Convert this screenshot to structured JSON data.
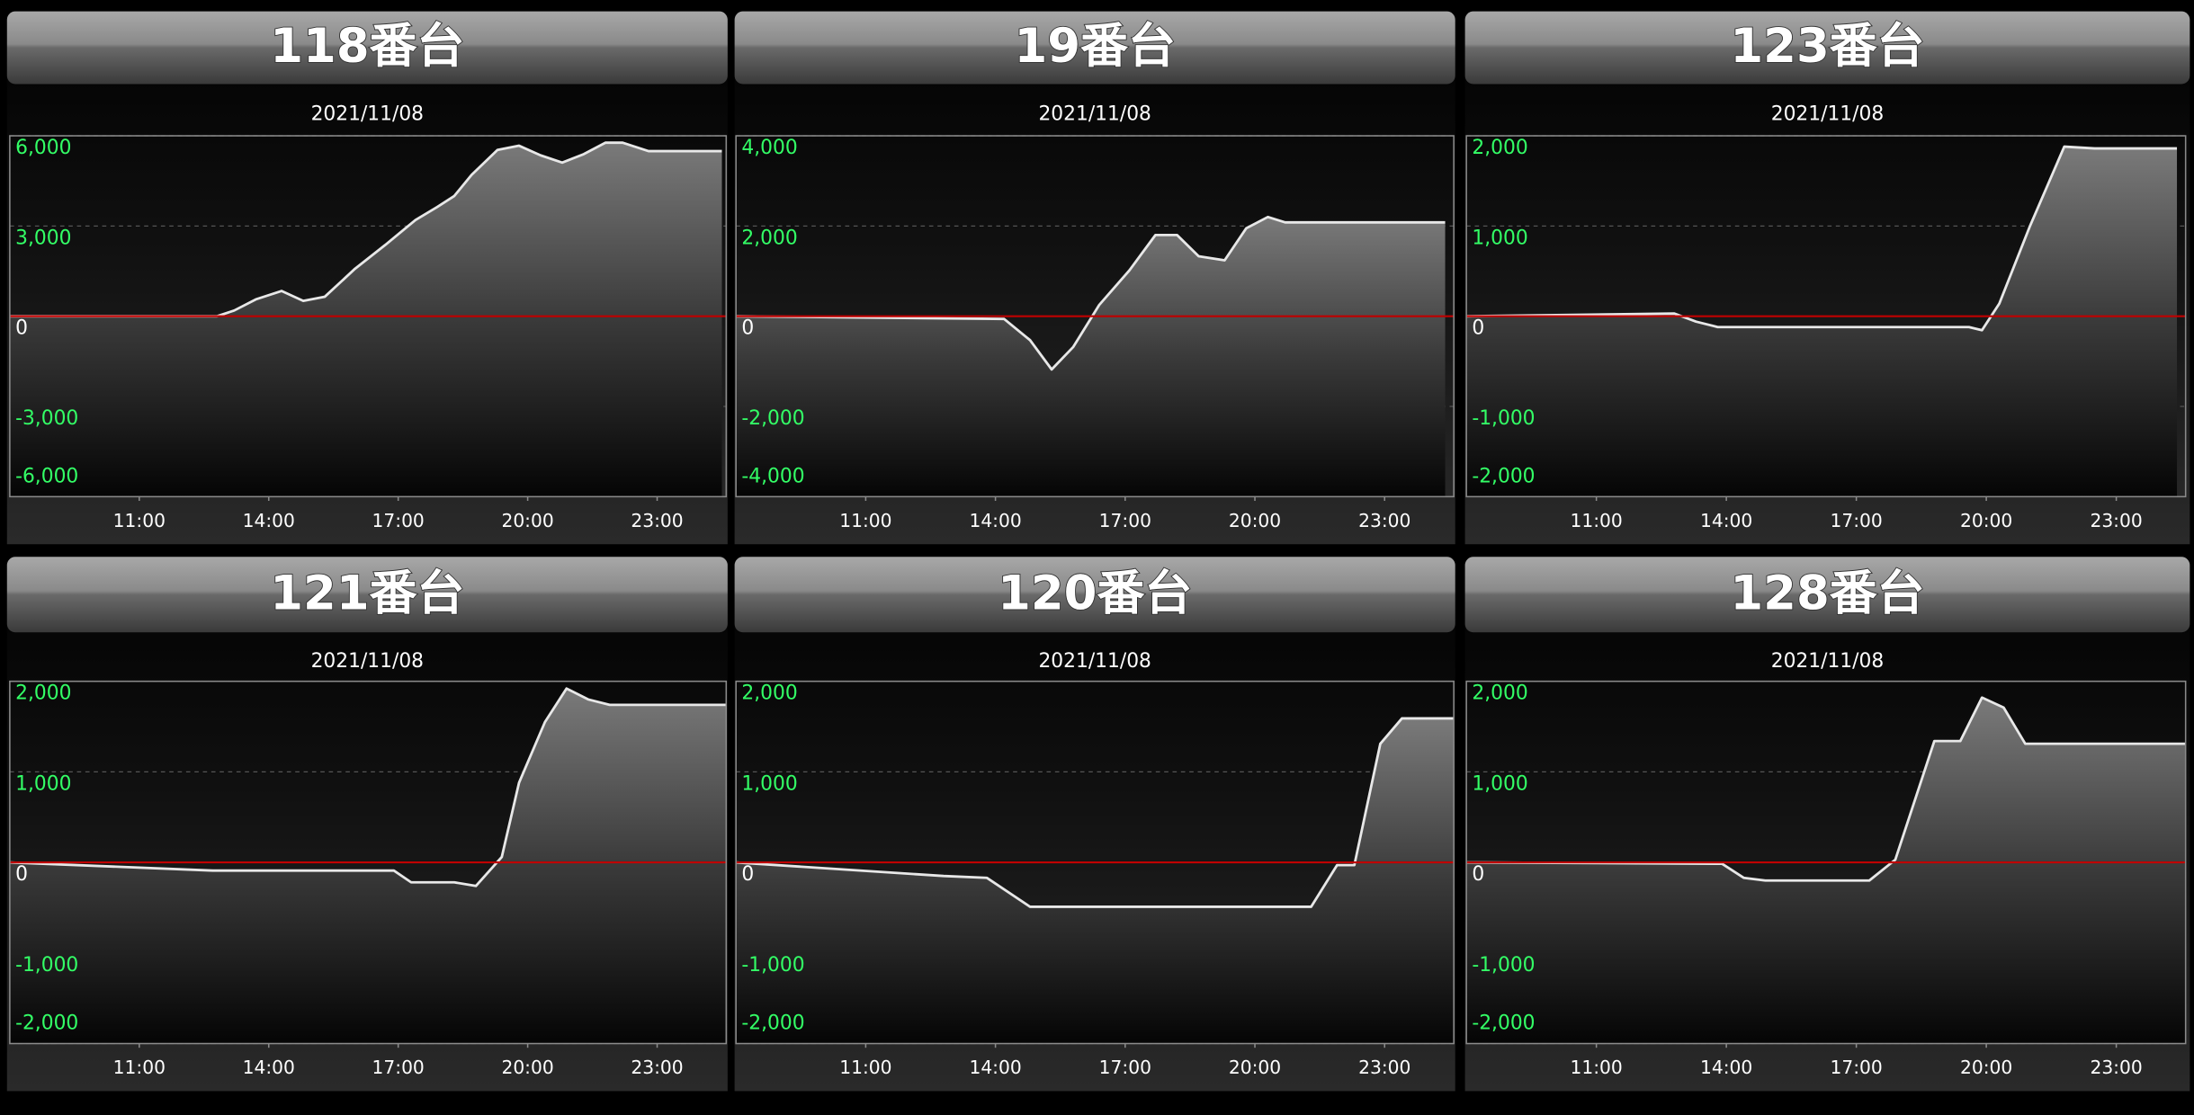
{
  "chart_data": [
    {
      "type": "line",
      "title": "118番台",
      "subtitle": "2021/11/08",
      "x": [
        8,
        12.8,
        13.2,
        13.7,
        14.3,
        14.8,
        15.3,
        16,
        16.7,
        17.4,
        17.9,
        18.3,
        18.7,
        19.3,
        19.8,
        20.3,
        20.8,
        21.3,
        21.8,
        22.2,
        22.8,
        24.5
      ],
      "series": [
        {
          "color": "#e8e8e8",
          "values": [
            0,
            0,
            190,
            560,
            840,
            510,
            650,
            1580,
            2370,
            3200,
            3630,
            4000,
            4700,
            5530,
            5670,
            5350,
            5110,
            5390,
            5770,
            5770,
            5490,
            5490
          ]
        }
      ],
      "xlim": [
        8,
        24.6
      ],
      "xticks": [
        {
          "value": 11,
          "label": "11:00"
        },
        {
          "value": 14,
          "label": "14:00"
        },
        {
          "value": 17,
          "label": "17:00"
        },
        {
          "value": 20,
          "label": "20:00"
        },
        {
          "value": 23,
          "label": "23:00"
        }
      ],
      "ylim": [
        -6000,
        6000
      ],
      "yticks": [
        {
          "value": 6000,
          "label": "6,000"
        },
        {
          "value": 3000,
          "label": "3,000"
        },
        0,
        {
          "value": -3000,
          "label": "-3,000"
        },
        {
          "value": -6000,
          "label": "-6,000"
        }
      ],
      "grid": true,
      "zero_line_color": "#c00000"
    },
    {
      "type": "line",
      "title": "19番台",
      "subtitle": "2021/11/08",
      "x": [
        8,
        14.2,
        14.8,
        15.3,
        15.8,
        16.4,
        17.1,
        17.7,
        18.2,
        18.7,
        19.3,
        19.8,
        20.3,
        20.7,
        24.4
      ],
      "series": [
        {
          "color": "#e8e8e8",
          "values": [
            0,
            -60,
            -530,
            -1180,
            -680,
            250,
            1020,
            1800,
            1800,
            1330,
            1240,
            1950,
            2200,
            2080,
            2080
          ]
        }
      ],
      "xlim": [
        8,
        24.6
      ],
      "xticks": [
        {
          "value": 11,
          "label": "11:00"
        },
        {
          "value": 14,
          "label": "14:00"
        },
        {
          "value": 17,
          "label": "17:00"
        },
        {
          "value": 20,
          "label": "20:00"
        },
        {
          "value": 23,
          "label": "23:00"
        }
      ],
      "ylim": [
        -4000,
        4000
      ],
      "yticks": [
        {
          "value": 4000,
          "label": "4,000"
        },
        {
          "value": 2000,
          "label": "2,000"
        },
        0,
        {
          "value": -2000,
          "label": "-2,000"
        },
        {
          "value": -4000,
          "label": "-4,000"
        }
      ],
      "grid": true,
      "zero_line_color": "#c00000"
    },
    {
      "type": "line",
      "title": "123番台",
      "subtitle": "2021/11/08",
      "x": [
        8,
        12.8,
        13.3,
        13.8,
        19.6,
        19.9,
        20.3,
        21,
        21.8,
        22.5,
        24.4
      ],
      "series": [
        {
          "color": "#e8e8e8",
          "values": [
            0,
            30,
            -60,
            -120,
            -120,
            -155,
            140,
            990,
            1880,
            1860,
            1860
          ]
        }
      ],
      "xlim": [
        8,
        24.6
      ],
      "xticks": [
        {
          "value": 11,
          "label": "11:00"
        },
        {
          "value": 14,
          "label": "14:00"
        },
        {
          "value": 17,
          "label": "17:00"
        },
        {
          "value": 20,
          "label": "20:00"
        },
        {
          "value": 23,
          "label": "23:00"
        }
      ],
      "ylim": [
        -2000,
        2000
      ],
      "yticks": [
        {
          "value": 2000,
          "label": "2,000"
        },
        {
          "value": 1000,
          "label": "1,000"
        },
        0,
        {
          "value": -1000,
          "label": "-1,000"
        },
        {
          "value": -2000,
          "label": "-2,000"
        }
      ],
      "grid": true,
      "zero_line_color": "#c00000"
    },
    {
      "type": "line",
      "title": "121番台",
      "subtitle": "2021/11/08",
      "x": [
        8,
        12.7,
        16.9,
        17.3,
        18.3,
        18.8,
        19.4,
        19.8,
        20.4,
        20.9,
        21.4,
        21.9,
        24.6
      ],
      "series": [
        {
          "color": "#e8e8e8",
          "values": [
            0,
            -90,
            -90,
            -220,
            -220,
            -260,
            60,
            880,
            1550,
            1920,
            1800,
            1740,
            1740
          ]
        }
      ],
      "xlim": [
        8,
        24.6
      ],
      "xticks": [
        {
          "value": 11,
          "label": "11:00"
        },
        {
          "value": 14,
          "label": "14:00"
        },
        {
          "value": 17,
          "label": "17:00"
        },
        {
          "value": 20,
          "label": "20:00"
        },
        {
          "value": 23,
          "label": "23:00"
        }
      ],
      "ylim": [
        -2000,
        2000
      ],
      "yticks": [
        {
          "value": 2000,
          "label": "2,000"
        },
        {
          "value": 1000,
          "label": "1,000"
        },
        0,
        {
          "value": -1000,
          "label": "-1,000"
        },
        {
          "value": -2000,
          "label": "-2,000"
        }
      ],
      "grid": true,
      "zero_line_color": "#c00000"
    },
    {
      "type": "line",
      "title": "120番台",
      "subtitle": "2021/11/08",
      "x": [
        8,
        12.8,
        13.8,
        14.8,
        21.3,
        21.9,
        22.3,
        22.9,
        23.4,
        24.6
      ],
      "series": [
        {
          "color": "#e8e8e8",
          "values": [
            0,
            -150,
            -170,
            -490,
            -490,
            -30,
            -30,
            1310,
            1590,
            1590
          ]
        }
      ],
      "xlim": [
        8,
        24.6
      ],
      "xticks": [
        {
          "value": 11,
          "label": "11:00"
        },
        {
          "value": 14,
          "label": "14:00"
        },
        {
          "value": 17,
          "label": "17:00"
        },
        {
          "value": 20,
          "label": "20:00"
        },
        {
          "value": 23,
          "label": "23:00"
        }
      ],
      "ylim": [
        -2000,
        2000
      ],
      "yticks": [
        {
          "value": 2000,
          "label": "2,000"
        },
        {
          "value": 1000,
          "label": "1,000"
        },
        0,
        {
          "value": -1000,
          "label": "-1,000"
        },
        {
          "value": -2000,
          "label": "-2,000"
        }
      ],
      "grid": true,
      "zero_line_color": "#c00000"
    },
    {
      "type": "line",
      "title": "128番台",
      "subtitle": "2021/11/08",
      "x": [
        8,
        13.9,
        14.4,
        14.9,
        17.3,
        17.9,
        18.8,
        19.4,
        19.9,
        20.4,
        20.9,
        24.6
      ],
      "series": [
        {
          "color": "#e8e8e8",
          "values": [
            0,
            -15,
            -170,
            -200,
            -200,
            30,
            1340,
            1340,
            1820,
            1710,
            1310,
            1310
          ]
        }
      ],
      "xlim": [
        8,
        24.6
      ],
      "xticks": [
        {
          "value": 11,
          "label": "11:00"
        },
        {
          "value": 14,
          "label": "14:00"
        },
        {
          "value": 17,
          "label": "17:00"
        },
        {
          "value": 20,
          "label": "20:00"
        },
        {
          "value": 23,
          "label": "23:00"
        }
      ],
      "ylim": [
        -2000,
        2000
      ],
      "yticks": [
        {
          "value": 2000,
          "label": "2,000"
        },
        {
          "value": 1000,
          "label": "1,000"
        },
        0,
        {
          "value": -1000,
          "label": "-1,000"
        },
        {
          "value": -2000,
          "label": "-2,000"
        }
      ],
      "grid": true,
      "zero_line_color": "#c00000"
    }
  ]
}
